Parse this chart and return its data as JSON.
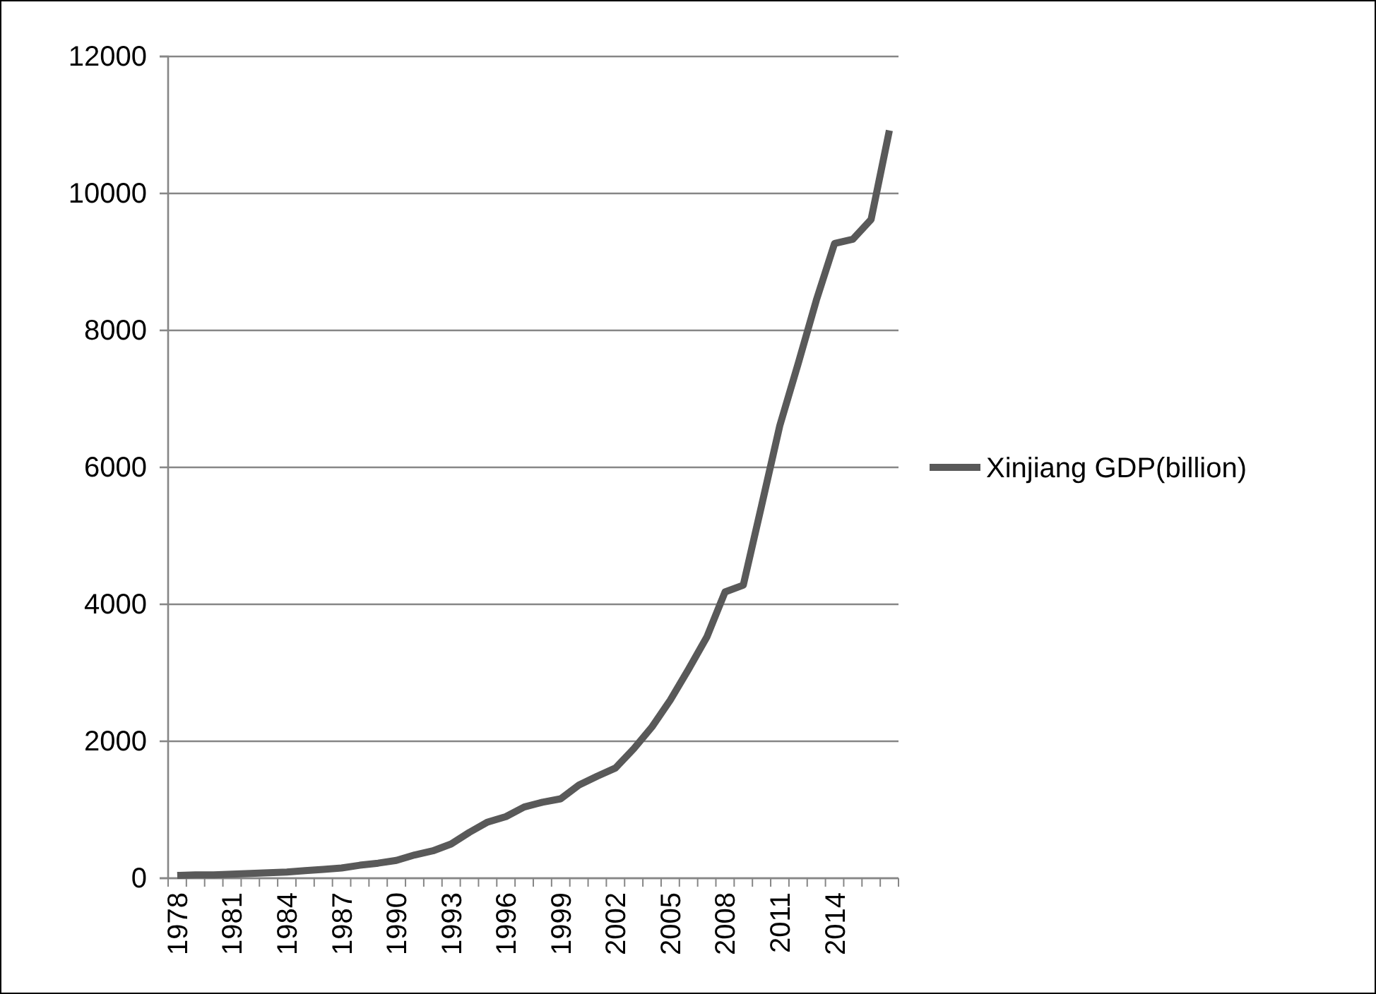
{
  "chart_data": {
    "type": "line",
    "categories": [
      "1978",
      null,
      null,
      "1981",
      null,
      null,
      "1984",
      null,
      null,
      "1987",
      null,
      null,
      "1990",
      null,
      null,
      "1993",
      null,
      null,
      "1996",
      null,
      null,
      "1999",
      null,
      null,
      "2002",
      null,
      null,
      "2005",
      null,
      null,
      "2008",
      null,
      null,
      "2011",
      null,
      null,
      "2014",
      null,
      null,
      null
    ],
    "series": [
      {
        "name": "Xinjiang GDP(billion)",
        "color": "#595959",
        "values": [
          40,
          50,
          50,
          60,
          70,
          80,
          90,
          110,
          130,
          150,
          190,
          220,
          260,
          340,
          400,
          500,
          670,
          820,
          900,
          1040,
          1110,
          1160,
          1360,
          1490,
          1610,
          1890,
          2210,
          2600,
          3050,
          3520,
          4180,
          4280,
          5440,
          6610,
          7510,
          8440,
          9270,
          9330,
          9620,
          10920
        ]
      }
    ],
    "ylim": [
      0,
      12000
    ],
    "yticks": [
      0,
      2000,
      4000,
      6000,
      8000,
      10000,
      12000
    ],
    "grid": "y",
    "legend": "right",
    "marker": "none",
    "line_style": "solid"
  }
}
